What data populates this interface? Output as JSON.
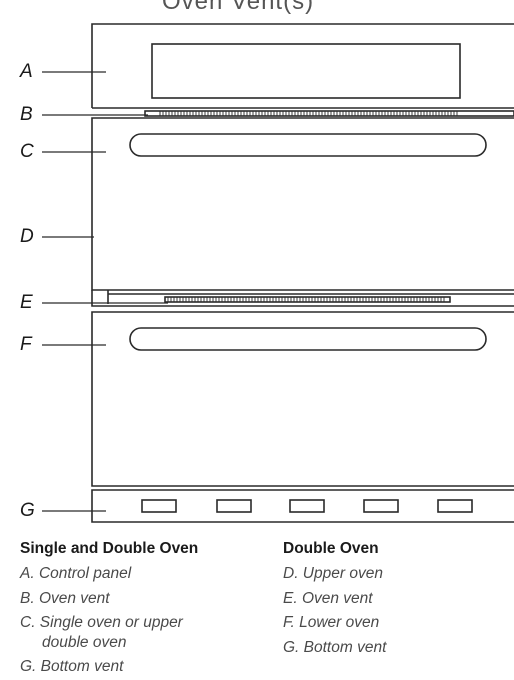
{
  "diagram": {
    "title_cut": "Oven Vent(s)",
    "callouts": [
      "A",
      "B",
      "C",
      "D",
      "E",
      "F",
      "G"
    ]
  },
  "legend": {
    "single_double": {
      "heading": "Single and Double Oven",
      "items": [
        {
          "text": "A. Control panel"
        },
        {
          "text": "B. Oven vent"
        },
        {
          "text": "C. Single oven or upper",
          "cont": "double oven"
        },
        {
          "text": "G. Bottom vent"
        }
      ]
    },
    "double": {
      "heading": "Double Oven",
      "items": [
        {
          "text": "D. Upper oven"
        },
        {
          "text": "E. Oven vent"
        },
        {
          "text": "F. Lower oven"
        },
        {
          "text": "G. Bottom vent"
        }
      ]
    }
  },
  "colors": {
    "line": "#2a2a2a",
    "text": "#1a1a1a",
    "legend_text": "#4a4a4a"
  }
}
